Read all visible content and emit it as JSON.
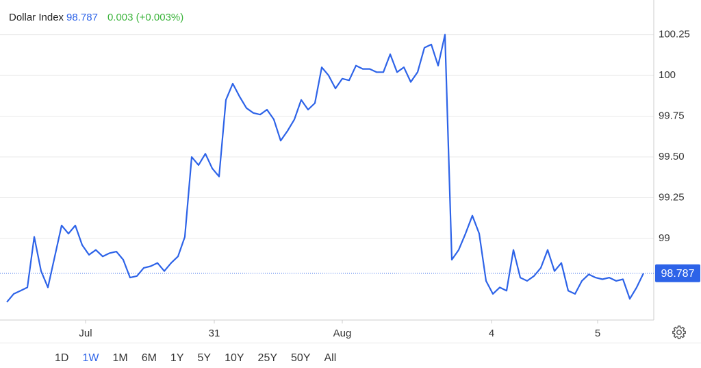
{
  "chart_data": {
    "type": "line",
    "title": "Dollar Index",
    "last_value": 98.787,
    "change": "0.003 (+0.003%)",
    "color": "#2d63e8",
    "values": [
      98.61,
      98.66,
      98.68,
      98.7,
      99.01,
      98.8,
      98.7,
      98.89,
      99.08,
      99.03,
      99.08,
      98.96,
      98.9,
      98.93,
      98.89,
      98.91,
      98.92,
      98.87,
      98.76,
      98.77,
      98.82,
      98.83,
      98.85,
      98.8,
      98.85,
      98.89,
      99.01,
      99.5,
      99.45,
      99.52,
      99.43,
      99.38,
      99.85,
      99.95,
      99.87,
      99.8,
      99.77,
      99.76,
      99.79,
      99.73,
      99.6,
      99.66,
      99.73,
      99.85,
      99.79,
      99.83,
      100.05,
      100,
      99.92,
      99.98,
      99.97,
      100.06,
      100.04,
      100.04,
      100.02,
      100.02,
      100.13,
      100.02,
      100.05,
      99.96,
      100.02,
      100.17,
      100.19,
      100.06,
      100.25,
      98.87,
      98.93,
      99.03,
      99.14,
      99.03,
      98.74,
      98.66,
      98.7,
      98.68,
      98.93,
      98.76,
      98.74,
      98.77,
      98.82,
      98.93,
      98.8,
      98.85,
      98.68,
      98.66,
      98.74,
      98.78,
      98.76,
      98.75,
      98.76,
      98.74,
      98.75,
      98.63,
      98.7,
      98.787
    ],
    "xlim": [
      0,
      93
    ],
    "xticks": [
      {
        "value": 11.5,
        "label": "Jul"
      },
      {
        "value": 30.3,
        "label": "31"
      },
      {
        "value": 49,
        "label": "Aug"
      },
      {
        "value": 70.8,
        "label": "4"
      },
      {
        "value": 86.3,
        "label": "5"
      }
    ],
    "ylim": [
      98.5,
      100.45
    ],
    "yticks": [
      99,
      99.25,
      {
        "value": 99.5,
        "label": "99.50"
      },
      99.75,
      100,
      100.25
    ],
    "grid": true
  },
  "range_selector": {
    "options": [
      "1D",
      "1W",
      "1M",
      "6M",
      "1Y",
      "5Y",
      "10Y",
      "25Y",
      "50Y",
      "All"
    ],
    "active": 1
  }
}
